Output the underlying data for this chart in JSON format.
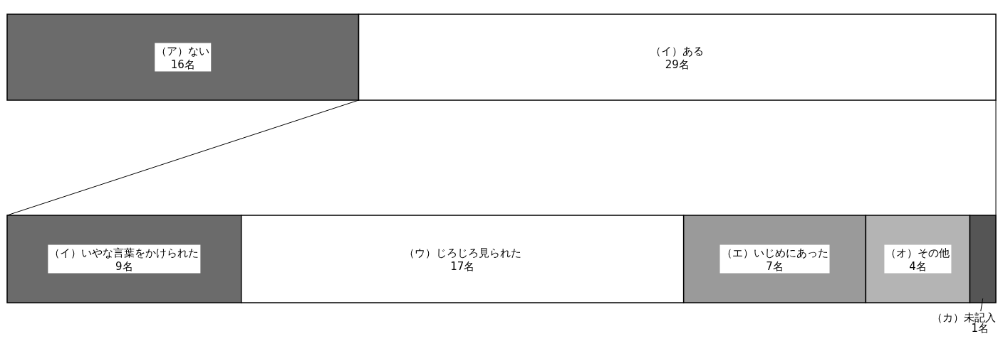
{
  "chart_data": [
    {
      "type": "bar",
      "orientation": "horizontal",
      "stacked": true,
      "categories": [
        null
      ],
      "xlim": [
        0,
        45
      ],
      "tick_labels": false,
      "series": [
        {
          "name": "（ア）ない",
          "color": "#6b6b6b",
          "values": [
            16
          ],
          "value_labels": [
            "16名"
          ]
        },
        {
          "name": "（イ）ある",
          "color": "#ffffff",
          "values": [
            29
          ],
          "value_labels": [
            "29名"
          ]
        }
      ]
    },
    {
      "type": "bar",
      "orientation": "horizontal",
      "stacked": true,
      "categories": [
        null
      ],
      "xlim": [
        0,
        38
      ],
      "tick_labels": false,
      "series": [
        {
          "name": "（イ）いやな言葉をかけられた",
          "color": "#6b6b6b",
          "values": [
            9
          ],
          "value_labels": [
            "9名"
          ]
        },
        {
          "name": "（ウ）じろじろ見られた",
          "color": "#ffffff",
          "values": [
            17
          ],
          "value_labels": [
            "17名"
          ]
        },
        {
          "name": "（エ）いじめにあった",
          "color": "#9a9a9a",
          "values": [
            7
          ],
          "value_labels": [
            "7名"
          ]
        },
        {
          "name": "（オ）その他",
          "color": "#b4b4b4",
          "values": [
            4
          ],
          "value_labels": [
            "4名"
          ]
        },
        {
          "name": "（カ）未記入",
          "color": "#555555",
          "values": [
            1
          ],
          "value_labels": [
            "1名"
          ]
        }
      ]
    }
  ]
}
